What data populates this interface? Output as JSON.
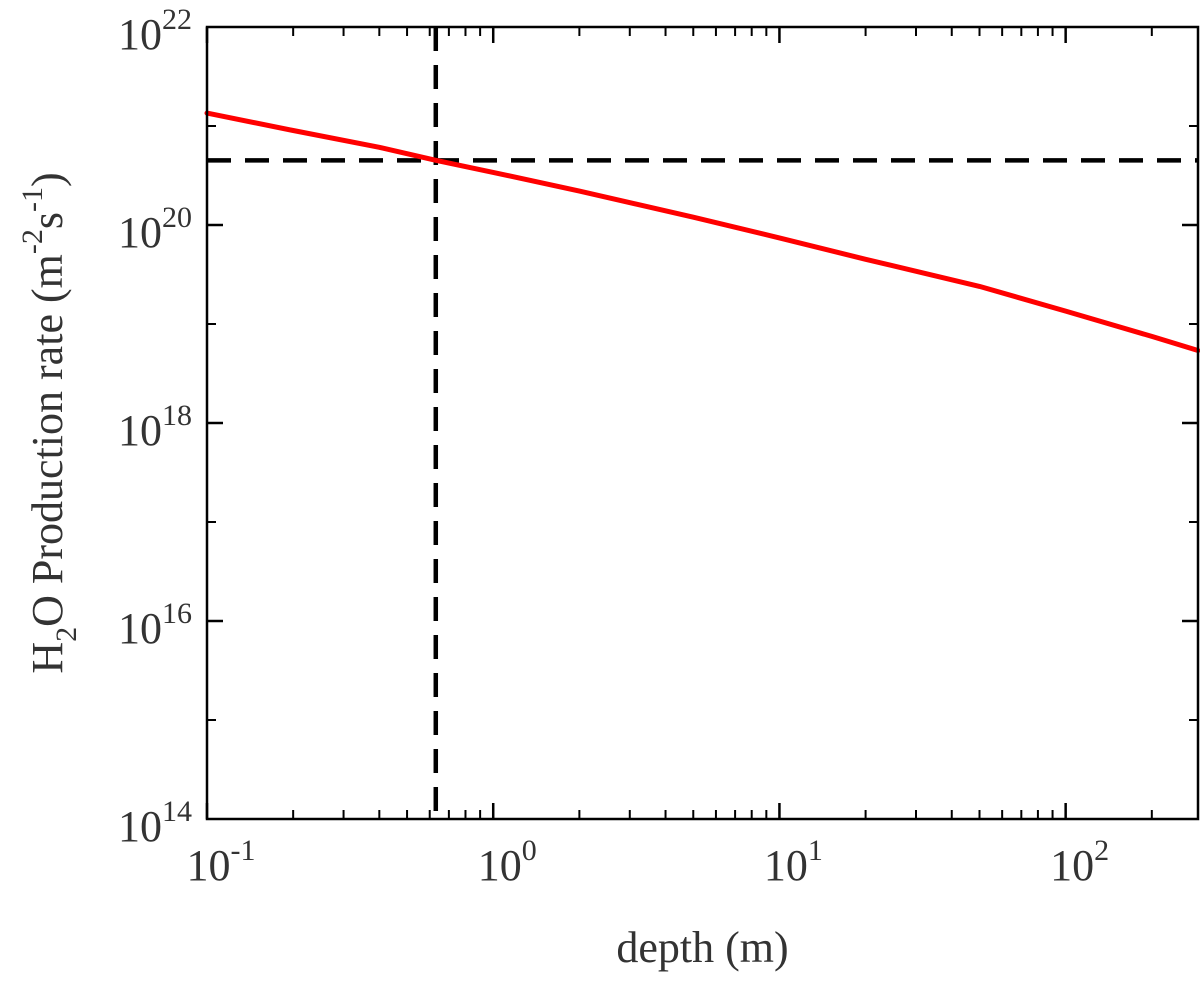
{
  "chart_data": {
    "type": "line",
    "xlabel": "depth (m)",
    "ylabel": {
      "parts": [
        {
          "text": "H",
          "shift": "none"
        },
        {
          "text": "2",
          "shift": "sub"
        },
        {
          "text": "O Production rate (m",
          "shift": "none"
        },
        {
          "text": "-2",
          "shift": "super"
        },
        {
          "text": "s",
          "shift": "none"
        },
        {
          "text": "-1",
          "shift": "super"
        },
        {
          "text": ")",
          "shift": "none"
        }
      ]
    },
    "x_scale": "log",
    "y_scale": "log",
    "xlim": [
      0.1,
      290
    ],
    "ylim": [
      100000000000000.0,
      1e+22
    ],
    "grid": false,
    "x_ticks": [
      {
        "value": 0.1,
        "base": "10",
        "exponent": "-1"
      },
      {
        "value": 1,
        "base": "10",
        "exponent": "0"
      },
      {
        "value": 10,
        "base": "10",
        "exponent": "1"
      },
      {
        "value": 100,
        "base": "10",
        "exponent": "2"
      }
    ],
    "y_ticks": [
      {
        "value": 100000000000000.0,
        "base": "10",
        "exponent": "14"
      },
      {
        "value": 1e+16,
        "base": "10",
        "exponent": "16"
      },
      {
        "value": 1e+18,
        "base": "10",
        "exponent": "18"
      },
      {
        "value": 1e+20,
        "base": "10",
        "exponent": "20"
      },
      {
        "value": 1e+22,
        "base": "10",
        "exponent": "22"
      }
    ],
    "series": [
      {
        "color": "#ff0000",
        "style": "solid",
        "x": [
          0.1,
          0.2,
          0.4,
          0.63,
          1,
          2,
          5,
          10,
          20,
          50,
          100,
          200,
          290
        ],
        "y": [
          1.35e+21,
          9e+20,
          6.1e+20,
          4.5e+20,
          3.4e+20,
          2.2e+20,
          1.2e+20,
          7.4e+19,
          4.5e+19,
          2.4e+19,
          1.35e+19,
          7.5e+18,
          5.4e+18
        ]
      }
    ],
    "reference_lines": [
      {
        "orientation": "vertical",
        "x": 0.63,
        "color": "#000000",
        "style": "dashed"
      },
      {
        "orientation": "horizontal",
        "y": 4.5e+20,
        "color": "#000000",
        "style": "dashed"
      }
    ]
  }
}
